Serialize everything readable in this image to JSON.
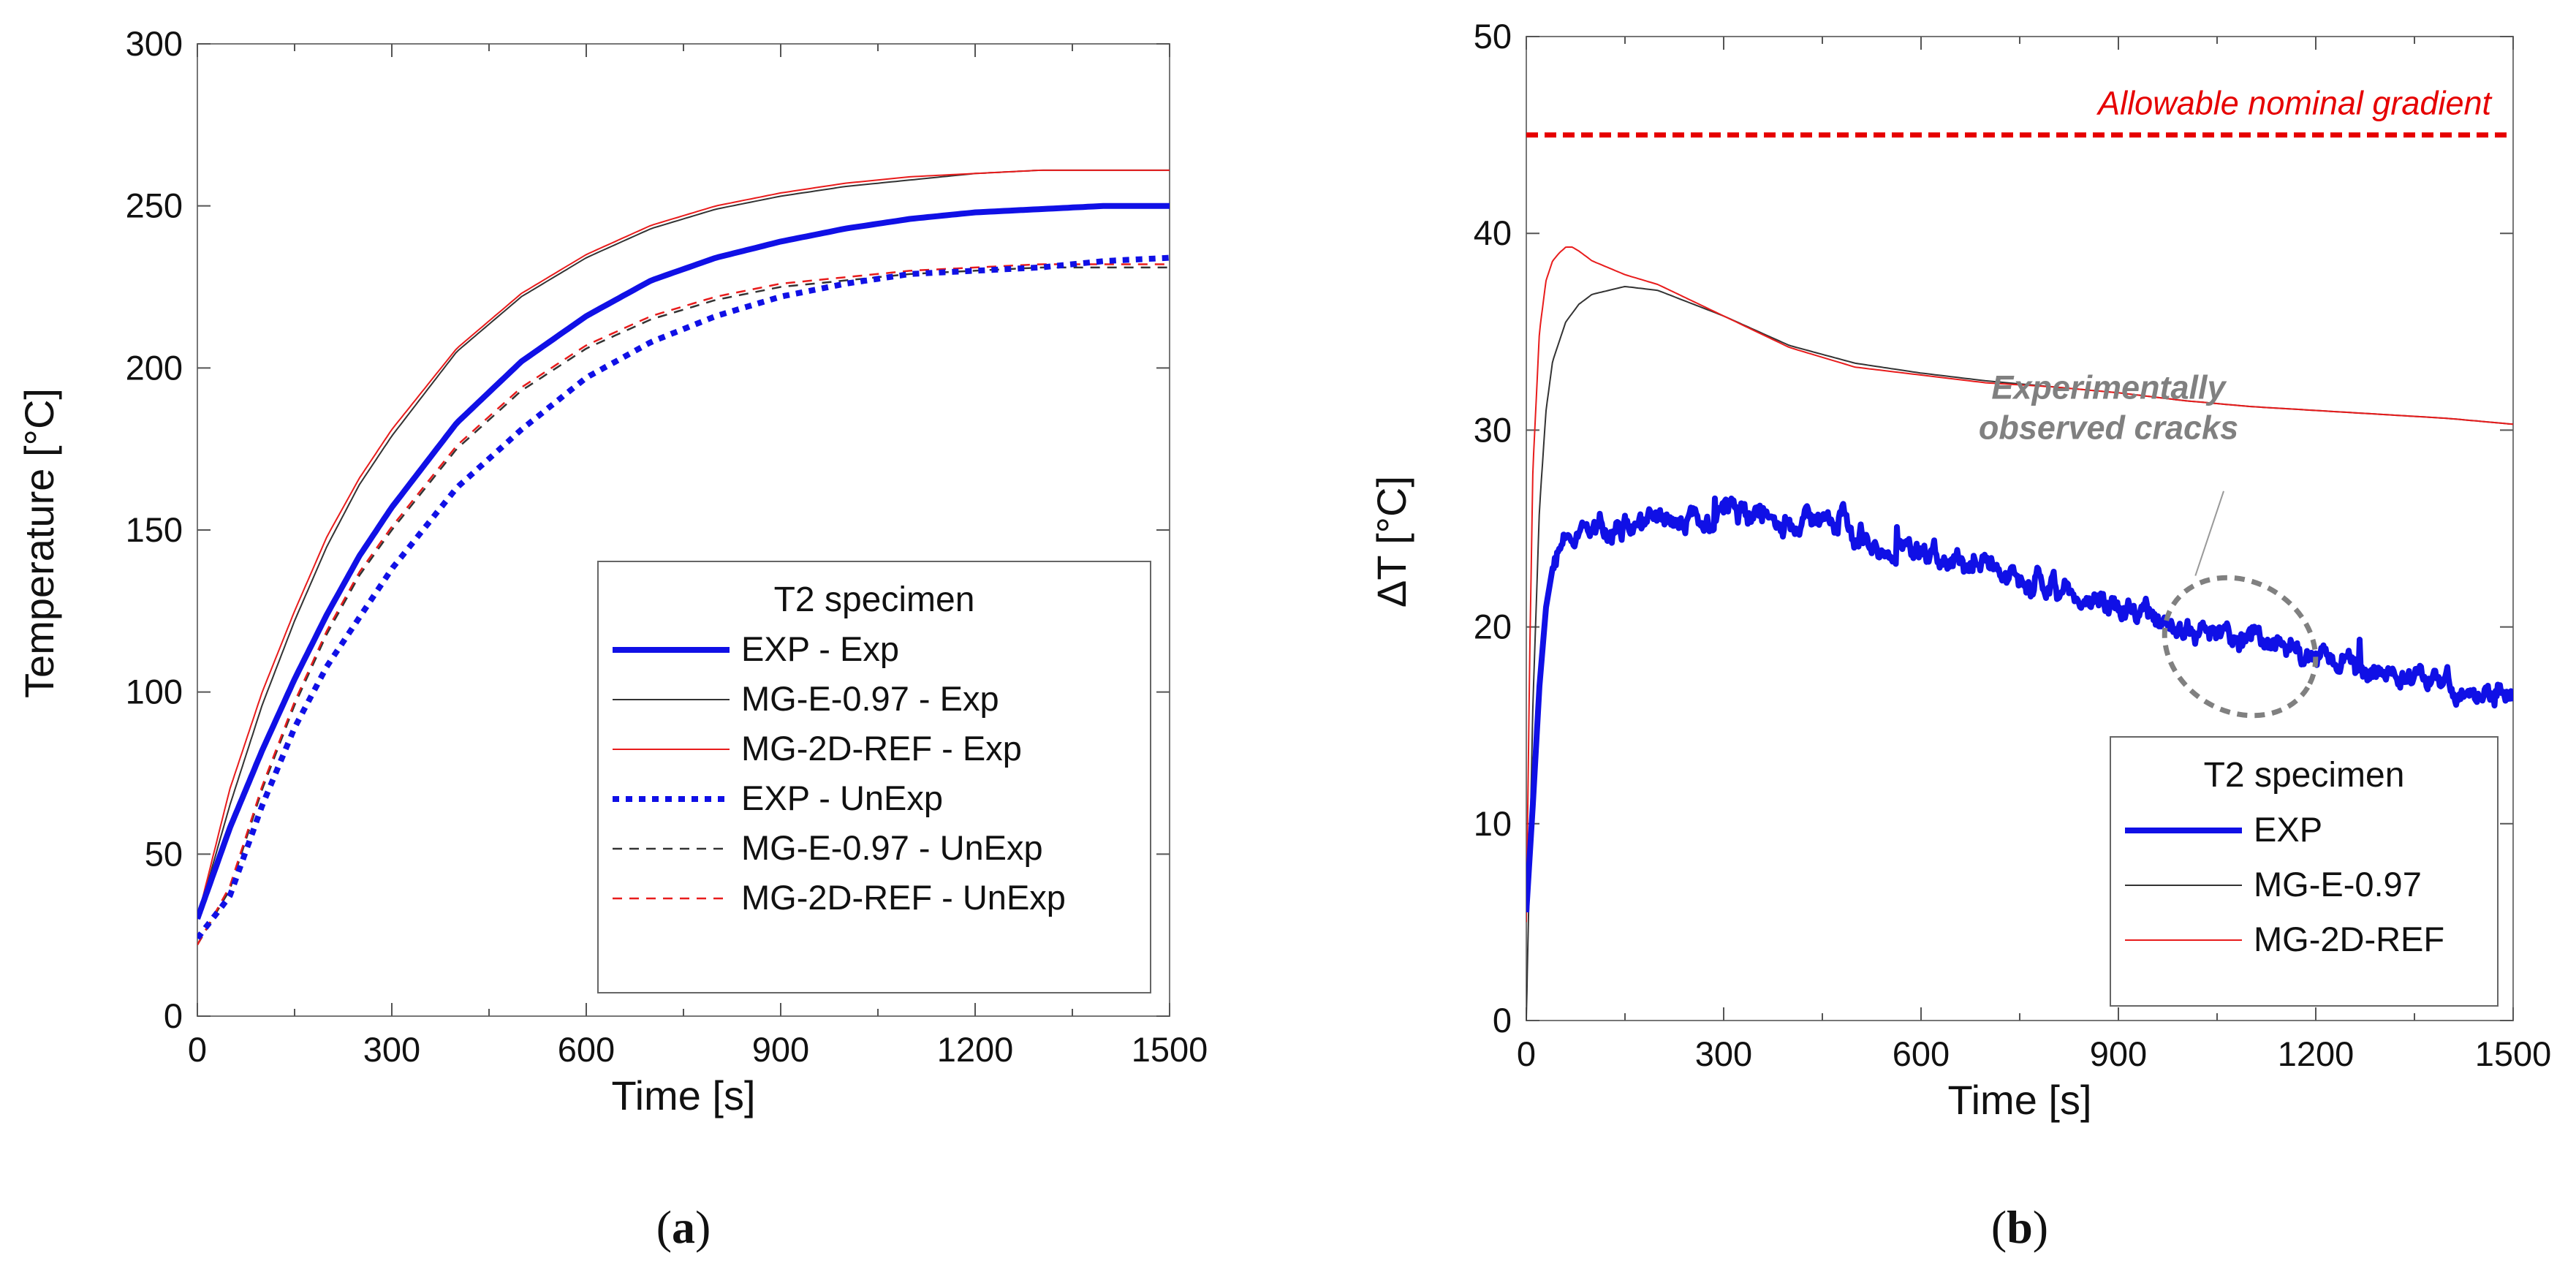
{
  "colors": {
    "blue": "#1010e6",
    "black": "#333333",
    "red": "#e81c1c",
    "limit_red": "#e60000",
    "annotation_gray": "#808080"
  },
  "chart_data": [
    {
      "type": "line",
      "panel_label_pre": "(",
      "panel_label": "a",
      "panel_label_post": ")",
      "xlabel": "Time  [s]",
      "ylabel": "Temperature  [°C]",
      "xlim": [
        0,
        1500
      ],
      "ylim": [
        0,
        300
      ],
      "x_ticks": [
        0,
        300,
        600,
        900,
        1200,
        1500
      ],
      "x_ticks_minor_step": 150,
      "y_ticks": [
        0,
        50,
        100,
        150,
        200,
        250,
        300
      ],
      "grid": false,
      "legend": {
        "title": "T2 specimen",
        "placement": "bottom-right"
      },
      "series": [
        {
          "name": "EXP - Exp",
          "style": "solid-thick",
          "color": "#1010e6",
          "x": [
            0,
            50,
            100,
            150,
            200,
            250,
            300,
            400,
            500,
            600,
            700,
            800,
            900,
            1000,
            1100,
            1200,
            1300,
            1400,
            1500
          ],
          "y": [
            30,
            58,
            82,
            104,
            124,
            142,
            157,
            183,
            202,
            216,
            227,
            234,
            239,
            243,
            246,
            248,
            249,
            250,
            250
          ]
        },
        {
          "name": "MG-E-0.97 - Exp",
          "style": "solid-thin",
          "color": "#333333",
          "x": [
            0,
            50,
            100,
            150,
            200,
            250,
            300,
            400,
            500,
            600,
            700,
            800,
            900,
            1000,
            1100,
            1200,
            1300,
            1400,
            1500
          ],
          "y": [
            30,
            65,
            96,
            122,
            145,
            164,
            179,
            205,
            222,
            234,
            243,
            249,
            253,
            256,
            258,
            260,
            261,
            261,
            261
          ]
        },
        {
          "name": "MG-2D-REF - Exp",
          "style": "solid-thin",
          "color": "#e81c1c",
          "x": [
            0,
            50,
            100,
            150,
            200,
            250,
            300,
            400,
            500,
            600,
            700,
            800,
            900,
            1000,
            1100,
            1200,
            1300,
            1400,
            1500
          ],
          "y": [
            30,
            70,
            100,
            125,
            148,
            166,
            181,
            206,
            223,
            235,
            244,
            250,
            254,
            257,
            259,
            260,
            261,
            261,
            261
          ]
        },
        {
          "name": "EXP - UnExp",
          "style": "dotted-thick",
          "color": "#1010e6",
          "x": [
            0,
            50,
            100,
            150,
            200,
            250,
            300,
            400,
            500,
            600,
            700,
            800,
            900,
            1000,
            1100,
            1200,
            1300,
            1400,
            1500
          ],
          "y": [
            24,
            37,
            65,
            89,
            108,
            123,
            138,
            163,
            181,
            197,
            208,
            216,
            222,
            226,
            229,
            230,
            231,
            233,
            234
          ]
        },
        {
          "name": "MG-E-0.97 - UnExp",
          "style": "dashed-thin",
          "color": "#333333",
          "x": [
            0,
            50,
            100,
            150,
            200,
            250,
            300,
            400,
            500,
            600,
            700,
            800,
            900,
            1000,
            1100,
            1200,
            1300,
            1400,
            1500
          ],
          "y": [
            22,
            39,
            70,
            96,
            118,
            136,
            150,
            175,
            193,
            206,
            215,
            221,
            225,
            227,
            229,
            230,
            231,
            231,
            231
          ]
        },
        {
          "name": "MG-2D-REF - UnExp",
          "style": "dashed-thin",
          "color": "#e81c1c",
          "x": [
            0,
            50,
            100,
            150,
            200,
            250,
            300,
            400,
            500,
            600,
            700,
            800,
            900,
            1000,
            1100,
            1200,
            1300,
            1400,
            1500
          ],
          "y": [
            22,
            40,
            71,
            97,
            119,
            137,
            151,
            176,
            194,
            207,
            216,
            222,
            226,
            228,
            230,
            231,
            232,
            232,
            232
          ]
        }
      ]
    },
    {
      "type": "line",
      "panel_label_pre": "(",
      "panel_label": "b",
      "panel_label_post": ")",
      "xlabel": "Time  [s]",
      "ylabel": "ΔT  [°C]",
      "xlim": [
        0,
        1500
      ],
      "ylim": [
        0,
        50
      ],
      "x_ticks": [
        0,
        300,
        600,
        900,
        1200,
        1500
      ],
      "x_ticks_minor_step": 150,
      "y_ticks": [
        0,
        10,
        20,
        30,
        40,
        50
      ],
      "grid": false,
      "legend": {
        "title": "T2 specimen",
        "placement": "bottom-right"
      },
      "reference_line": {
        "label": "Allowable nominal gradient",
        "y": 45,
        "style": "dashed-thick",
        "color": "#e60000"
      },
      "annotation": {
        "lines": [
          "Experimentally",
          "observed cracks"
        ],
        "ellipse_center": [
          1085,
          19
        ],
        "ellipse_rx": 120,
        "ellipse_ry": 3.3,
        "ellipse_angle_deg": 31,
        "leader_from": [
          1060,
          26.9
        ],
        "leader_to": [
          1017,
          22.6
        ]
      },
      "series": [
        {
          "name": "EXP",
          "style": "solid-thick",
          "color": "#1010e6",
          "x": [
            0,
            10,
            20,
            30,
            40,
            60,
            80,
            100,
            150,
            200,
            250,
            300,
            350,
            400,
            450,
            500,
            550,
            600,
            650,
            700,
            750,
            800,
            850,
            900,
            950,
            1000,
            1050,
            1100,
            1150,
            1200,
            1250,
            1300,
            1350,
            1400,
            1450,
            1500
          ],
          "y": [
            5.5,
            11,
            17,
            21,
            23,
            24.2,
            24.6,
            24.8,
            25.2,
            25.4,
            25.7,
            25.9,
            26.0,
            25.7,
            25.4,
            25.0,
            24.3,
            23.8,
            23.4,
            23.0,
            22.5,
            22.0,
            21.5,
            21.0,
            20.6,
            20.2,
            19.8,
            19.4,
            19.0,
            18.6,
            18.2,
            17.9,
            17.5,
            17.1,
            16.6,
            16.2
          ],
          "noise_seed": 7,
          "noise_amplitude": 0.45
        },
        {
          "name": "MG-E-0.97",
          "style": "solid-thin",
          "color": "#333333",
          "x": [
            0,
            5,
            10,
            20,
            30,
            40,
            60,
            80,
            100,
            150,
            200,
            300,
            400,
            500,
            600,
            700,
            800,
            900,
            1000,
            1100,
            1200,
            1300,
            1400,
            1500
          ],
          "y": [
            0,
            8,
            16,
            26,
            31,
            33.5,
            35.5,
            36.4,
            36.9,
            37.3,
            37.1,
            35.8,
            34.3,
            33.4,
            32.9,
            32.5,
            32.2,
            31.9,
            31.5,
            31.2,
            31.0,
            30.8,
            30.6,
            30.3
          ]
        },
        {
          "name": "MG-2D-REF",
          "style": "solid-thin",
          "color": "#e81c1c",
          "x": [
            0,
            5,
            10,
            20,
            30,
            40,
            50,
            60,
            70,
            80,
            100,
            150,
            200,
            300,
            400,
            500,
            600,
            700,
            800,
            900,
            1000,
            1100,
            1200,
            1300,
            1400,
            1500
          ],
          "y": [
            5,
            18,
            28,
            35,
            37.6,
            38.6,
            39.0,
            39.3,
            39.3,
            39.1,
            38.6,
            37.9,
            37.4,
            35.8,
            34.2,
            33.2,
            32.8,
            32.4,
            32.2,
            31.9,
            31.5,
            31.2,
            31.0,
            30.8,
            30.6,
            30.3
          ]
        }
      ]
    }
  ]
}
